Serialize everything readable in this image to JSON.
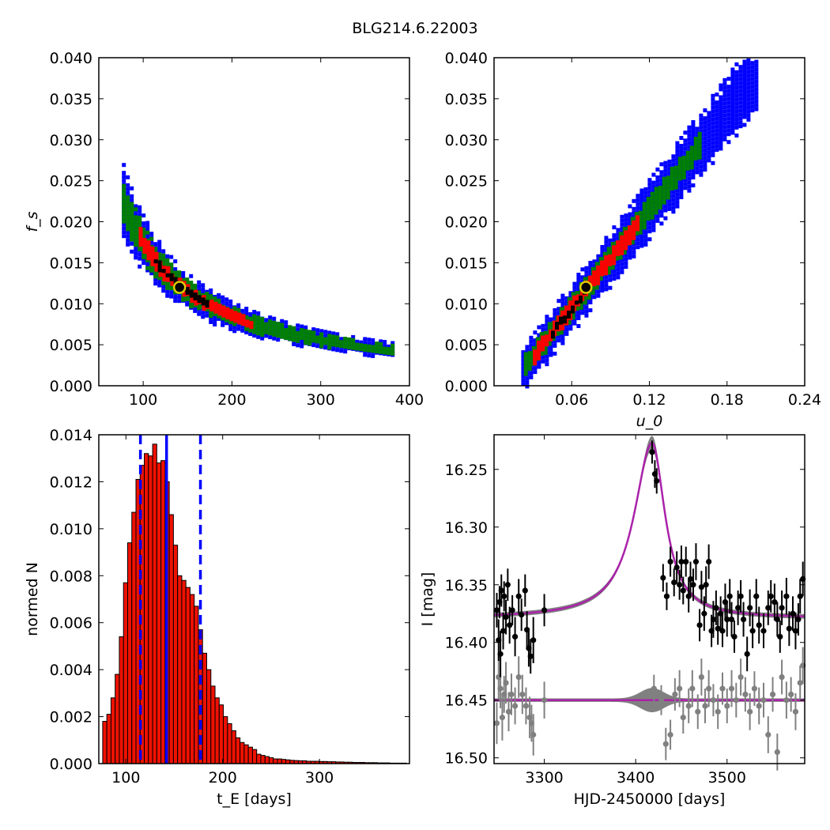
{
  "figure_title": "BLG214.6.22003",
  "colors": {
    "blue": "#0000ff",
    "green": "#008000",
    "red": "#ff0000",
    "black": "#000000",
    "gray": "#808080",
    "magenta": "#aa22aa",
    "yellow": "#ddcc00",
    "hist_fill": "#ee1100"
  },
  "chart_data": [
    {
      "id": "fs_vs_tE",
      "type": "heatmap",
      "xlabel": "",
      "ylabel": "f_s",
      "xlim": [
        50,
        400
      ],
      "ylim": [
        0,
        0.04
      ],
      "x_ticks": [
        "100",
        "200",
        "300",
        "400"
      ],
      "x_tick_values": [
        100,
        200,
        300,
        400
      ],
      "y_ticks": [
        "0.000",
        "0.005",
        "0.010",
        "0.015",
        "0.020",
        "0.025",
        "0.030",
        "0.035",
        "0.040"
      ],
      "y_tick_values": [
        0,
        0.005,
        0.01,
        0.015,
        0.02,
        0.025,
        0.03,
        0.035,
        0.04
      ],
      "curve": {
        "model": "fs = 1.72 / tE",
        "x_range": [
          76,
          380
        ]
      },
      "layers": [
        {
          "level": "3-sigma",
          "color": "blue",
          "rel_width": 0.2
        },
        {
          "level": "2-sigma",
          "color": "green",
          "rel_width": 0.13
        },
        {
          "level": "1-sigma",
          "color": "red",
          "rel_width": 0.07,
          "x_range": [
            95,
            220
          ]
        },
        {
          "level": "best",
          "color": "black",
          "rel_width": 0.035,
          "x_range": [
            112,
            170
          ]
        }
      ],
      "best_fit": {
        "x": 141,
        "y": 0.012
      }
    },
    {
      "id": "fs_vs_u0",
      "type": "heatmap",
      "xlabel": "u_0",
      "ylabel": "",
      "xlim": [
        0,
        0.24
      ],
      "ylim": [
        0,
        0.04
      ],
      "x_ticks": [
        "0.06",
        "0.12",
        "0.18",
        "0.24"
      ],
      "x_tick_values": [
        0.06,
        0.12,
        0.18,
        0.24
      ],
      "y_ticks": [
        "0.000",
        "0.005",
        "0.010",
        "0.015",
        "0.020",
        "0.025",
        "0.030",
        "0.035",
        "0.040"
      ],
      "y_tick_values": [
        0,
        0.005,
        0.01,
        0.015,
        0.02,
        0.025,
        0.03,
        0.035,
        0.04
      ],
      "curve": {
        "model": "fs = 0.2 * u0 - 0.0021",
        "x_range": [
          0.021,
          0.202
        ]
      },
      "layers": [
        {
          "level": "3-sigma",
          "color": "blue",
          "rel_width": 0.0025,
          "x_range": [
            0.021,
            0.202
          ]
        },
        {
          "level": "2-sigma",
          "color": "green",
          "rel_width": 0.0016,
          "x_range": [
            0.023,
            0.158
          ]
        },
        {
          "level": "1-sigma",
          "color": "red",
          "rel_width": 0.001,
          "x_range": [
            0.03,
            0.11
          ]
        },
        {
          "level": "best",
          "color": "black",
          "rel_width": 0.0005,
          "x_range": [
            0.044,
            0.072
          ]
        }
      ],
      "best_fit": {
        "x": 0.071,
        "y": 0.012
      }
    },
    {
      "id": "tE_histogram",
      "type": "bar",
      "xlabel": "t_E [days]",
      "ylabel": "normed N",
      "xlim": [
        72,
        393
      ],
      "ylim": [
        0,
        0.014
      ],
      "x_ticks": [
        "100",
        "200",
        "300"
      ],
      "x_tick_values": [
        100,
        200,
        300
      ],
      "y_ticks": [
        "0.000",
        "0.002",
        "0.004",
        "0.006",
        "0.008",
        "0.010",
        "0.012",
        "0.014"
      ],
      "y_tick_values": [
        0,
        0.002,
        0.004,
        0.006,
        0.008,
        0.01,
        0.012,
        0.014
      ],
      "bin_start": 76,
      "bin_width": 4.3,
      "values": [
        0.0018,
        0.0021,
        0.0028,
        0.0038,
        0.0054,
        0.0077,
        0.0094,
        0.0107,
        0.0121,
        0.0127,
        0.0132,
        0.0131,
        0.0136,
        0.0128,
        0.0129,
        0.012,
        0.0106,
        0.0093,
        0.008,
        0.0078,
        0.0075,
        0.0072,
        0.0067,
        0.0057,
        0.0047,
        0.004,
        0.0033,
        0.0028,
        0.0025,
        0.002,
        0.0017,
        0.0014,
        0.0011,
        0.0009,
        0.0008,
        0.0007,
        0.0006,
        0.0004,
        0.00035,
        0.0003,
        0.00025,
        0.0002,
        0.0002,
        0.00018,
        0.00016,
        0.00014,
        0.00013,
        0.00012,
        0.00012,
        0.0001,
        0.0001,
        0.0001,
        9e-05,
        9e-05,
        8e-05,
        8e-05,
        7e-05,
        7e-05,
        6e-05,
        6e-05,
        5e-05,
        5e-05,
        5e-05,
        4e-05,
        4e-05,
        4e-05,
        3e-05,
        3e-05,
        3e-05,
        2e-05,
        2e-05,
        2e-05,
        2e-05
      ],
      "vlines": [
        {
          "x": 115,
          "style": "dashed",
          "color": "blue"
        },
        {
          "x": 142,
          "style": "solid",
          "color": "blue"
        },
        {
          "x": 177,
          "style": "dashed",
          "color": "blue"
        }
      ]
    },
    {
      "id": "lightcurve",
      "type": "scatter",
      "xlabel": "HJD-2450000 [days]",
      "ylabel": "I [mag]",
      "xlim": [
        3245,
        3585
      ],
      "ylim": [
        16.505,
        16.22
      ],
      "y_inverted": true,
      "x_ticks": [
        "3300",
        "3400",
        "3500"
      ],
      "x_tick_values": [
        3300,
        3400,
        3500
      ],
      "y_ticks": [
        "16.25",
        "16.30",
        "16.35",
        "16.40",
        "16.45",
        "16.50"
      ],
      "y_tick_values": [
        16.25,
        16.3,
        16.35,
        16.4,
        16.45,
        16.5
      ],
      "model": {
        "baseline": 16.379,
        "peak": 16.227,
        "t0": 3418,
        "rise_scale": 25,
        "fall_scale": 18
      },
      "residual_baseline": 16.45,
      "data_points": [
        [
          3248,
          16.372,
          0.015
        ],
        [
          3250,
          16.398,
          0.018
        ],
        [
          3251,
          16.365,
          0.014
        ],
        [
          3252,
          16.41,
          0.02
        ],
        [
          3253,
          16.355,
          0.014
        ],
        [
          3255,
          16.39,
          0.016
        ],
        [
          3256,
          16.36,
          0.013
        ],
        [
          3258,
          16.378,
          0.015
        ],
        [
          3260,
          16.35,
          0.014
        ],
        [
          3262,
          16.385,
          0.016
        ],
        [
          3265,
          16.372,
          0.013
        ],
        [
          3268,
          16.395,
          0.017
        ],
        [
          3272,
          16.36,
          0.015
        ],
        [
          3275,
          16.376,
          0.014
        ],
        [
          3279,
          16.355,
          0.014
        ],
        [
          3281,
          16.389,
          0.016
        ],
        [
          3283,
          16.405,
          0.016
        ],
        [
          3285,
          16.412,
          0.015
        ],
        [
          3288,
          16.398,
          0.02
        ],
        [
          3300,
          16.372,
          0.014
        ],
        [
          3418,
          16.235,
          0.01
        ],
        [
          3421,
          16.254,
          0.012
        ],
        [
          3423,
          16.26,
          0.011
        ],
        [
          3430,
          16.344,
          0.012
        ],
        [
          3434,
          16.36,
          0.012
        ],
        [
          3438,
          16.33,
          0.013
        ],
        [
          3442,
          16.348,
          0.012
        ],
        [
          3445,
          16.335,
          0.014
        ],
        [
          3448,
          16.35,
          0.013
        ],
        [
          3450,
          16.33,
          0.014
        ],
        [
          3452,
          16.355,
          0.012
        ],
        [
          3455,
          16.33,
          0.013
        ],
        [
          3458,
          16.36,
          0.014
        ],
        [
          3460,
          16.345,
          0.015
        ],
        [
          3463,
          16.35,
          0.014
        ],
        [
          3466,
          16.33,
          0.016
        ],
        [
          3470,
          16.385,
          0.014
        ],
        [
          3472,
          16.352,
          0.014
        ],
        [
          3475,
          16.375,
          0.015
        ],
        [
          3477,
          16.35,
          0.016
        ],
        [
          3480,
          16.33,
          0.015
        ],
        [
          3483,
          16.39,
          0.014
        ],
        [
          3485,
          16.38,
          0.016
        ],
        [
          3488,
          16.37,
          0.015
        ],
        [
          3490,
          16.388,
          0.014
        ],
        [
          3493,
          16.375,
          0.015
        ],
        [
          3495,
          16.39,
          0.014
        ],
        [
          3498,
          16.365,
          0.016
        ],
        [
          3500,
          16.38,
          0.015
        ],
        [
          3503,
          16.36,
          0.015
        ],
        [
          3505,
          16.38,
          0.015
        ],
        [
          3508,
          16.395,
          0.014
        ],
        [
          3512,
          16.37,
          0.015
        ],
        [
          3515,
          16.36,
          0.014
        ],
        [
          3518,
          16.38,
          0.015
        ],
        [
          3522,
          16.41,
          0.015
        ],
        [
          3525,
          16.37,
          0.016
        ],
        [
          3528,
          16.39,
          0.015
        ],
        [
          3532,
          16.36,
          0.015
        ],
        [
          3535,
          16.385,
          0.016
        ],
        [
          3540,
          16.39,
          0.015
        ],
        [
          3545,
          16.37,
          0.015
        ],
        [
          3548,
          16.36,
          0.014
        ],
        [
          3552,
          16.365,
          0.016
        ],
        [
          3555,
          16.38,
          0.015
        ],
        [
          3558,
          16.395,
          0.014
        ],
        [
          3560,
          16.37,
          0.015
        ],
        [
          3565,
          16.36,
          0.016
        ],
        [
          3568,
          16.388,
          0.015
        ],
        [
          3572,
          16.375,
          0.015
        ],
        [
          3575,
          16.39,
          0.016
        ],
        [
          3578,
          16.38,
          0.014
        ],
        [
          3580,
          16.36,
          0.015
        ],
        [
          3583,
          16.345,
          0.015
        ]
      ],
      "residual_points": [
        [
          3248,
          16.47,
          0.018
        ],
        [
          3250,
          16.43,
          0.02
        ],
        [
          3252,
          16.44,
          0.017
        ],
        [
          3254,
          16.465,
          0.02
        ],
        [
          3256,
          16.445,
          0.016
        ],
        [
          3258,
          16.435,
          0.018
        ],
        [
          3261,
          16.46,
          0.017
        ],
        [
          3264,
          16.445,
          0.018
        ],
        [
          3268,
          16.455,
          0.016
        ],
        [
          3272,
          16.43,
          0.018
        ],
        [
          3276,
          16.445,
          0.017
        ],
        [
          3280,
          16.455,
          0.016
        ],
        [
          3284,
          16.465,
          0.018
        ],
        [
          3286,
          16.47,
          0.016
        ],
        [
          3288,
          16.48,
          0.018
        ],
        [
          3300,
          16.45,
          0.016
        ],
        [
          3420,
          16.44,
          0.012
        ],
        [
          3428,
          16.45,
          0.013
        ],
        [
          3433,
          16.488,
          0.014
        ],
        [
          3438,
          16.48,
          0.013
        ],
        [
          3443,
          16.445,
          0.014
        ],
        [
          3448,
          16.44,
          0.016
        ],
        [
          3452,
          16.465,
          0.014
        ],
        [
          3458,
          16.455,
          0.015
        ],
        [
          3462,
          16.44,
          0.016
        ],
        [
          3468,
          16.46,
          0.015
        ],
        [
          3472,
          16.43,
          0.016
        ],
        [
          3476,
          16.455,
          0.015
        ],
        [
          3480,
          16.44,
          0.016
        ],
        [
          3485,
          16.45,
          0.014
        ],
        [
          3490,
          16.46,
          0.015
        ],
        [
          3495,
          16.44,
          0.014
        ],
        [
          3500,
          16.455,
          0.015
        ],
        [
          3505,
          16.44,
          0.016
        ],
        [
          3510,
          16.45,
          0.015
        ],
        [
          3515,
          16.43,
          0.016
        ],
        [
          3520,
          16.445,
          0.015
        ],
        [
          3525,
          16.46,
          0.016
        ],
        [
          3530,
          16.44,
          0.015
        ],
        [
          3535,
          16.455,
          0.016
        ],
        [
          3540,
          16.45,
          0.015
        ],
        [
          3545,
          16.48,
          0.016
        ],
        [
          3550,
          16.445,
          0.015
        ],
        [
          3555,
          16.495,
          0.016
        ],
        [
          3560,
          16.43,
          0.015
        ],
        [
          3565,
          16.45,
          0.016
        ],
        [
          3570,
          16.445,
          0.015
        ],
        [
          3575,
          16.46,
          0.016
        ],
        [
          3580,
          16.435,
          0.015
        ],
        [
          3583,
          16.42,
          0.016
        ]
      ]
    }
  ]
}
